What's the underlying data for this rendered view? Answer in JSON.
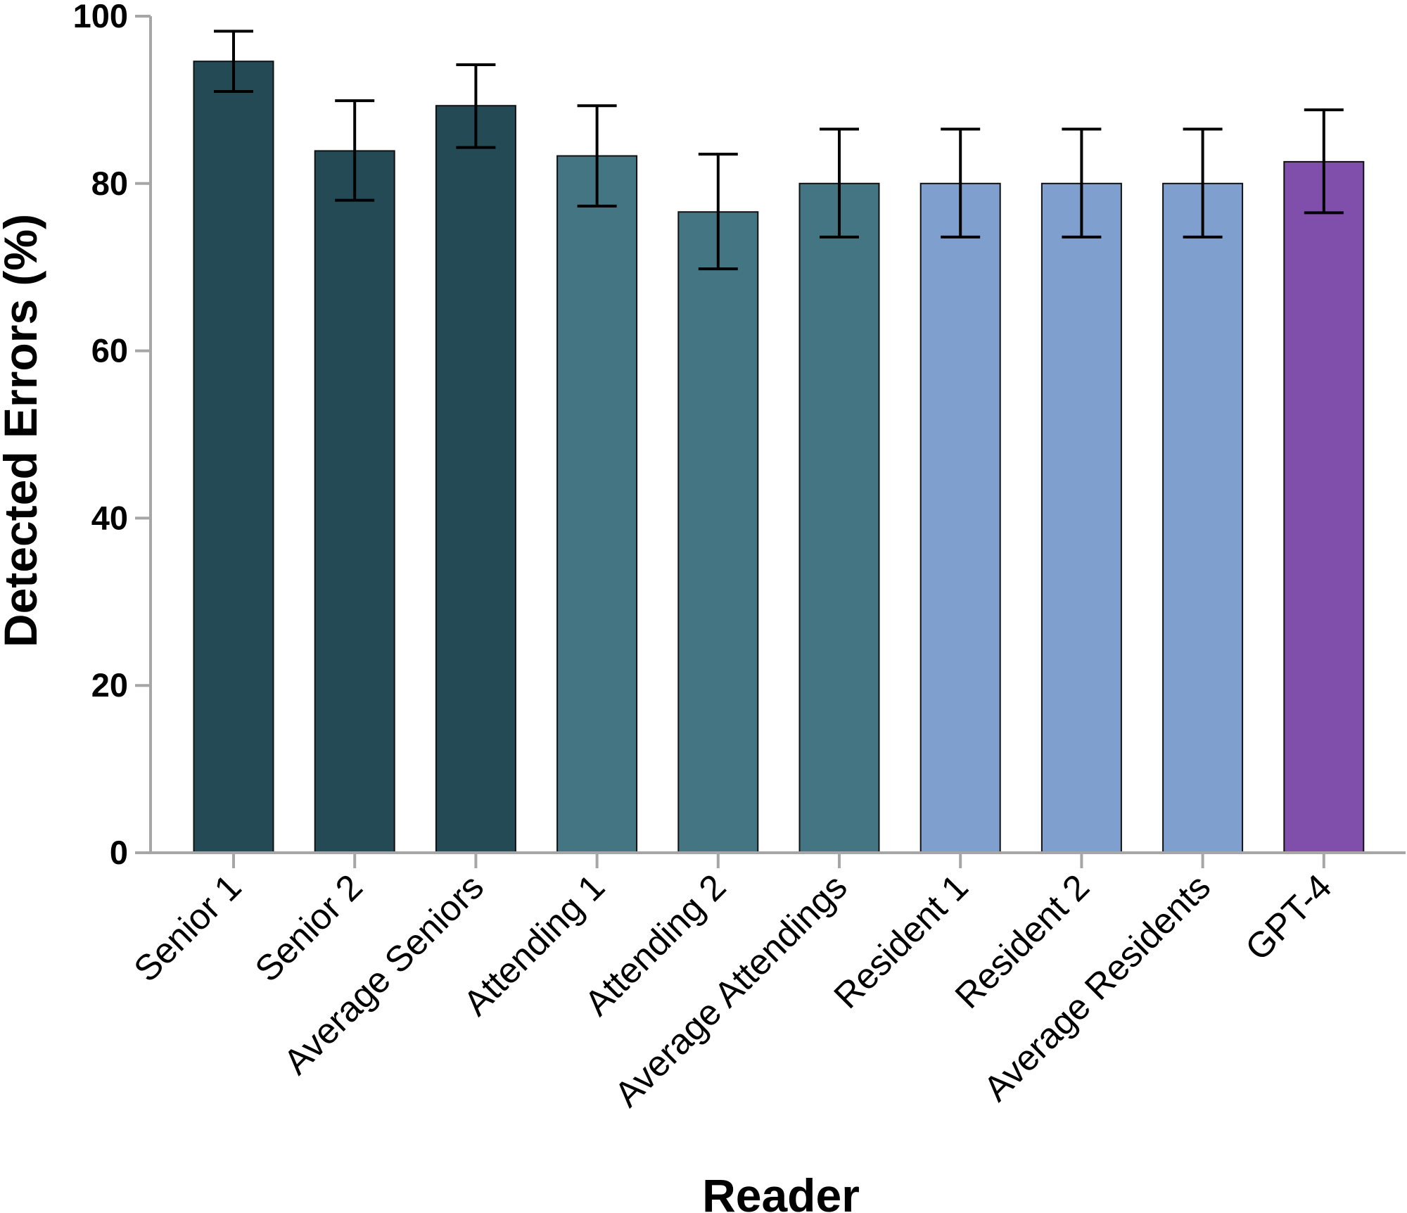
{
  "chart_data": {
    "type": "bar",
    "title": "",
    "xlabel": "Reader",
    "ylabel": "Detected Errors (%)",
    "ylim": [
      0,
      100
    ],
    "yticks": [
      0,
      20,
      40,
      60,
      80,
      100
    ],
    "grid": false,
    "categories": [
      "Senior 1",
      "Senior 2",
      "Average Seniors",
      "Attending 1",
      "Attending 2",
      "Average Attendings",
      "Resident 1",
      "Resident 2",
      "Average Residents",
      "GPT-4"
    ],
    "values": [
      94.6,
      83.9,
      89.3,
      83.3,
      76.6,
      80.0,
      80.0,
      80.0,
      80.0,
      82.6
    ],
    "error_low": [
      91.0,
      78.0,
      84.3,
      77.3,
      69.8,
      73.6,
      73.6,
      73.6,
      73.6,
      76.5
    ],
    "error_high": [
      98.2,
      89.9,
      94.2,
      89.3,
      83.5,
      86.5,
      86.5,
      86.5,
      86.5,
      88.8
    ],
    "colors": [
      "#234a55",
      "#234a55",
      "#234a55",
      "#437583",
      "#437583",
      "#437583",
      "#7f9fcf",
      "#7f9fcf",
      "#7f9fcf",
      "#7f4fab"
    ]
  }
}
